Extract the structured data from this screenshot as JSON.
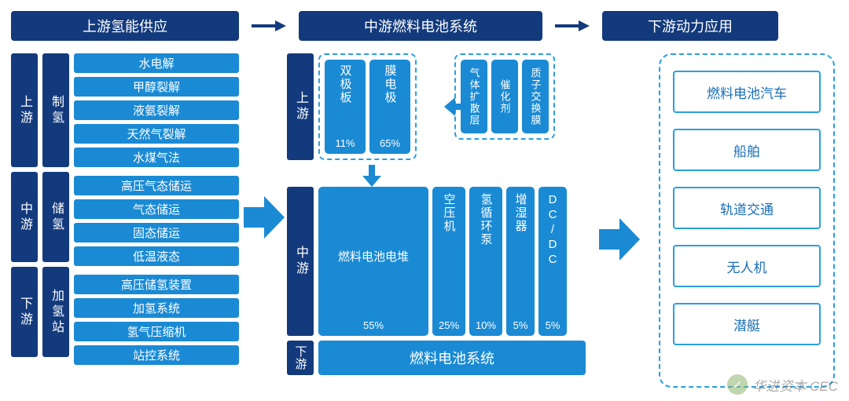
{
  "colors": {
    "dark_blue": "#133a7c",
    "mid_blue": "#1a8ad4",
    "light_blue": "#2a9fe0",
    "outline_blue": "#2a9fe0",
    "text_blue": "#1b6fb5",
    "arrow_dark": "#133a7c",
    "arrow_mid": "#1a8ad4"
  },
  "headers": {
    "h1": "上游氢能供应",
    "h2": "中游燃料电池系统",
    "h3": "下游动力应用"
  },
  "section1": {
    "levels": [
      "上游",
      "中游",
      "下游"
    ],
    "categories": [
      "制氢",
      "储氢",
      "加氢站"
    ],
    "groups": [
      {
        "items": [
          "水电解",
          "甲醇裂解",
          "液氨裂解",
          "天然气裂解",
          "水煤气法"
        ]
      },
      {
        "items": [
          "高压气态储运",
          "气态储运",
          "固态储运",
          "低温液态"
        ]
      },
      {
        "items": [
          "高压储氢装置",
          "加氢系统",
          "氢气压缩机",
          "站控系统"
        ]
      }
    ]
  },
  "section2": {
    "levels": [
      "上游",
      "中游",
      "下游"
    ],
    "upstream_main": [
      {
        "label": "双极板",
        "pct": "11%"
      },
      {
        "label": "膜电极",
        "pct": "65%"
      }
    ],
    "upstream_inputs": [
      "气体扩散层",
      "催化剂",
      "质子交换膜"
    ],
    "mid": [
      {
        "label": "燃料电池电堆",
        "pct": "55%",
        "w": 140
      },
      {
        "label": "空压机",
        "pct": "25%",
        "w": 42
      },
      {
        "label": "氢循环泵",
        "pct": "10%",
        "w": 42
      },
      {
        "label": "增湿器",
        "pct": "5%",
        "w": 36
      },
      {
        "label": "DC/DC",
        "pct": "5%",
        "w": 36
      }
    ],
    "downstream": "燃料电池系统"
  },
  "section3": {
    "items": [
      "燃料电池汽车",
      "船舶",
      "轨道交通",
      "无人机",
      "潜艇"
    ]
  },
  "watermark": "华进资本 CEC"
}
